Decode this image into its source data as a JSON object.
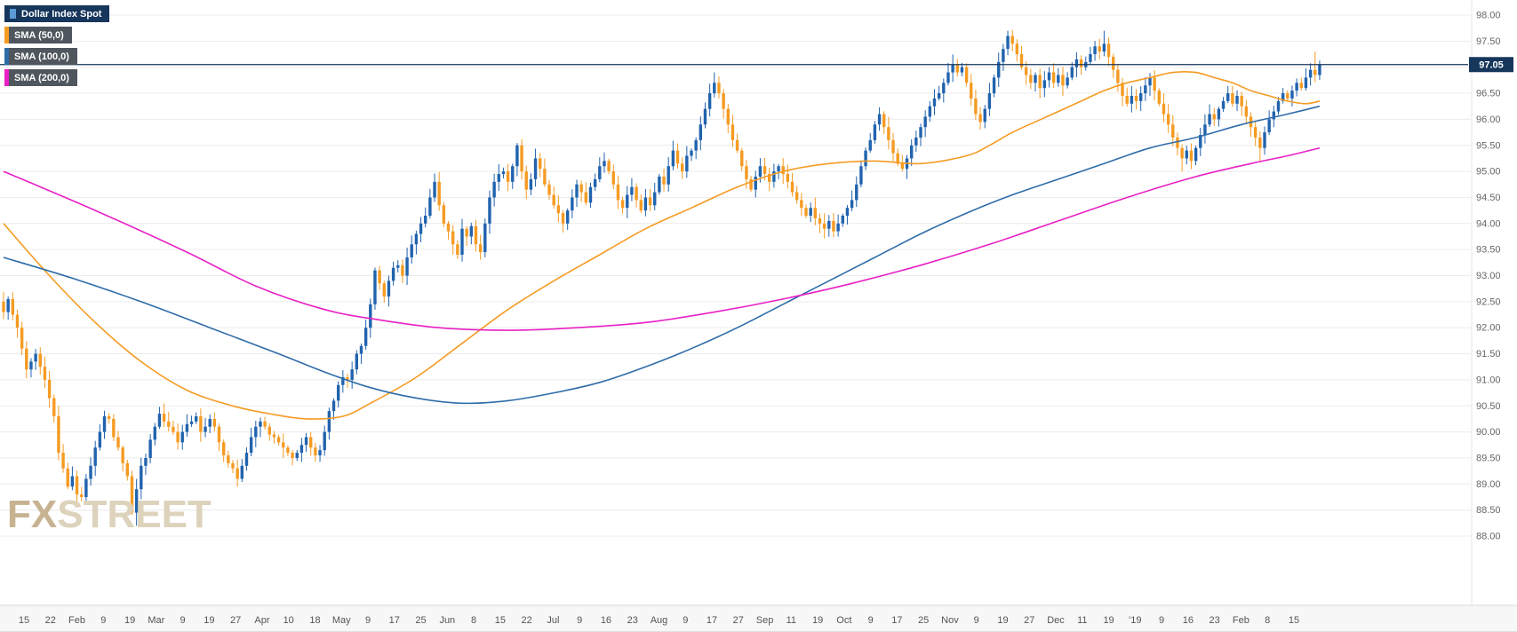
{
  "legend": {
    "series": {
      "label": "Dollar Index Spot"
    },
    "sma_items": [
      {
        "label": "SMA (50,0)",
        "color_key": "sma50"
      },
      {
        "label": "SMA (100,0)",
        "color_key": "sma100"
      },
      {
        "label": "SMA (200,0)",
        "color_key": "sma200"
      }
    ]
  },
  "watermark": {
    "fx": "FX",
    "street": "STREET"
  },
  "chart_data": {
    "type": "candlestick",
    "title": "Dollar Index Spot",
    "timeframe": "daily",
    "last_price": 97.05,
    "price_line": {
      "value": 97.05,
      "label": "97.05"
    },
    "colors": {
      "up": "#2163AE",
      "down": "#F59B22",
      "sma50": "#F59B22",
      "sma100": "#2E6CA8",
      "sma200": "#E820C5",
      "grid": "#ECECEC",
      "axis_text": "#666666",
      "navy": "#16365C",
      "legend_bg": "#4F565E",
      "marker": "#5B9BD5"
    },
    "y_axis": {
      "min": 88.0,
      "max": 98.0,
      "step": 0.5,
      "labels": [
        "98.00",
        "97.50",
        "97.00",
        "96.50",
        "96.00",
        "95.50",
        "95.00",
        "94.50",
        "94.00",
        "93.50",
        "93.00",
        "92.50",
        "92.00",
        "91.50",
        "91.00",
        "90.50",
        "90.00",
        "89.50",
        "89.00",
        "88.50",
        "88.00"
      ]
    },
    "x_axis": {
      "labels": [
        "15",
        "22",
        "Feb",
        "9",
        "19",
        "Mar",
        "9",
        "19",
        "27",
        "Apr",
        "10",
        "18",
        "May",
        "9",
        "17",
        "25",
        "Jun",
        "8",
        "15",
        "22",
        "Jul",
        "9",
        "16",
        "23",
        "Aug",
        "9",
        "17",
        "27",
        "Sep",
        "11",
        "19",
        "Oct",
        "9",
        "17",
        "25",
        "Nov",
        "9",
        "19",
        "27",
        "Dec",
        "11",
        "19",
        "'19",
        "9",
        "16",
        "23",
        "Feb",
        "8",
        "15"
      ]
    },
    "candles": {
      "first_open": 92.5,
      "closes": [
        92.3,
        92.55,
        92.25,
        92.0,
        91.6,
        91.2,
        91.35,
        91.5,
        91.25,
        91.0,
        90.65,
        90.3,
        89.6,
        89.3,
        88.95,
        89.15,
        88.8,
        88.75,
        89.1,
        89.35,
        89.7,
        90.0,
        90.3,
        90.25,
        89.9,
        89.7,
        89.4,
        89.15,
        88.45,
        88.9,
        89.35,
        89.5,
        89.85,
        90.1,
        90.35,
        90.2,
        90.1,
        90.0,
        89.8,
        90.0,
        90.15,
        90.2,
        90.3,
        90.0,
        90.1,
        90.25,
        90.1,
        89.8,
        89.55,
        89.4,
        89.3,
        89.1,
        89.35,
        89.6,
        89.9,
        90.1,
        90.2,
        90.1,
        89.95,
        89.9,
        89.8,
        89.7,
        89.6,
        89.5,
        89.6,
        89.75,
        89.9,
        89.7,
        89.55,
        89.65,
        90.0,
        90.4,
        90.6,
        90.9,
        91.05,
        91.0,
        91.2,
        91.5,
        91.65,
        92.0,
        92.45,
        93.1,
        92.85,
        92.6,
        92.9,
        93.15,
        93.2,
        93.0,
        93.35,
        93.6,
        93.8,
        94.0,
        94.15,
        94.5,
        94.8,
        94.35,
        94.0,
        93.85,
        93.6,
        93.4,
        93.9,
        93.75,
        93.95,
        93.6,
        93.45,
        94.0,
        94.5,
        94.8,
        94.95,
        95.0,
        94.8,
        95.1,
        95.5,
        95.0,
        94.65,
        94.85,
        95.25,
        95.05,
        94.75,
        94.55,
        94.35,
        94.2,
        94.0,
        94.25,
        94.5,
        94.75,
        94.6,
        94.4,
        94.7,
        94.85,
        95.1,
        95.2,
        95.0,
        94.75,
        94.45,
        94.3,
        94.55,
        94.7,
        94.45,
        94.25,
        94.5,
        94.35,
        94.6,
        94.9,
        94.75,
        95.1,
        95.4,
        95.15,
        95.0,
        95.3,
        95.4,
        95.6,
        95.9,
        96.2,
        96.5,
        96.7,
        96.5,
        96.2,
        95.9,
        95.6,
        95.4,
        95.1,
        94.85,
        94.65,
        94.9,
        95.1,
        94.95,
        94.8,
        95.0,
        95.1,
        94.95,
        94.8,
        94.6,
        94.45,
        94.3,
        94.15,
        94.3,
        94.1,
        94.0,
        93.9,
        94.05,
        93.85,
        94.0,
        94.15,
        94.3,
        94.45,
        94.75,
        95.1,
        95.4,
        95.6,
        95.9,
        96.1,
        95.85,
        95.6,
        95.35,
        95.15,
        95.05,
        95.25,
        95.5,
        95.65,
        95.85,
        96.05,
        96.25,
        96.4,
        96.5,
        96.7,
        96.9,
        97.05,
        96.9,
        97.0,
        96.7,
        96.4,
        96.1,
        95.95,
        96.2,
        96.5,
        96.8,
        97.1,
        97.35,
        97.6,
        97.45,
        97.25,
        97.0,
        96.85,
        96.7,
        96.85,
        96.6,
        96.75,
        96.9,
        96.7,
        96.85,
        96.65,
        96.8,
        97.0,
        97.15,
        97.0,
        97.1,
        97.25,
        97.4,
        97.3,
        97.45,
        97.2,
        96.95,
        96.7,
        96.45,
        96.3,
        96.45,
        96.35,
        96.5,
        96.65,
        96.8,
        96.55,
        96.3,
        96.1,
        95.9,
        95.65,
        95.45,
        95.25,
        95.4,
        95.2,
        95.45,
        95.7,
        95.9,
        96.1,
        96.0,
        96.2,
        96.35,
        96.5,
        96.3,
        96.45,
        96.25,
        96.05,
        95.85,
        95.65,
        95.45,
        95.75,
        96.0,
        96.15,
        96.35,
        96.5,
        96.4,
        96.55,
        96.7,
        96.6,
        96.8,
        96.95,
        96.85,
        97.05
      ],
      "wick_overrides": {
        "29": {
          "low": 88.2
        },
        "155": {
          "high": 96.9
        },
        "219": {
          "high": 97.7
        },
        "240": {
          "high": 97.7
        },
        "257": {
          "low": 95.0
        },
        "274": {
          "low": 95.2
        },
        "286": {
          "high": 97.3
        }
      }
    },
    "sma_series": [
      {
        "id": "sma-50-line",
        "name": "SMA (50,0)",
        "color_key": "sma50",
        "anchors": [
          [
            0,
            94.0
          ],
          [
            10,
            93.0
          ],
          [
            20,
            92.1
          ],
          [
            30,
            91.35
          ],
          [
            40,
            90.8
          ],
          [
            50,
            90.5
          ],
          [
            58,
            90.35
          ],
          [
            66,
            90.25
          ],
          [
            74,
            90.3
          ],
          [
            80,
            90.55
          ],
          [
            90,
            91.05
          ],
          [
            100,
            91.7
          ],
          [
            110,
            92.35
          ],
          [
            120,
            92.9
          ],
          [
            130,
            93.4
          ],
          [
            140,
            93.9
          ],
          [
            150,
            94.3
          ],
          [
            160,
            94.7
          ],
          [
            170,
            95.0
          ],
          [
            180,
            95.15
          ],
          [
            190,
            95.2
          ],
          [
            200,
            95.15
          ],
          [
            210,
            95.3
          ],
          [
            215,
            95.5
          ],
          [
            220,
            95.75
          ],
          [
            225,
            95.95
          ],
          [
            230,
            96.15
          ],
          [
            235,
            96.35
          ],
          [
            240,
            96.55
          ],
          [
            245,
            96.7
          ],
          [
            250,
            96.8
          ],
          [
            255,
            96.9
          ],
          [
            260,
            96.9
          ],
          [
            264,
            96.8
          ],
          [
            268,
            96.7
          ],
          [
            272,
            96.55
          ],
          [
            276,
            96.45
          ],
          [
            280,
            96.35
          ],
          [
            284,
            96.3
          ],
          [
            287,
            96.35
          ]
        ]
      },
      {
        "id": "sma-100-line",
        "name": "SMA (100,0)",
        "color_key": "sma100",
        "anchors": [
          [
            0,
            93.35
          ],
          [
            15,
            92.95
          ],
          [
            30,
            92.5
          ],
          [
            45,
            92.0
          ],
          [
            60,
            91.5
          ],
          [
            70,
            91.15
          ],
          [
            80,
            90.85
          ],
          [
            90,
            90.65
          ],
          [
            100,
            90.55
          ],
          [
            110,
            90.6
          ],
          [
            120,
            90.75
          ],
          [
            130,
            90.95
          ],
          [
            140,
            91.25
          ],
          [
            150,
            91.6
          ],
          [
            160,
            92.0
          ],
          [
            170,
            92.45
          ],
          [
            180,
            92.9
          ],
          [
            190,
            93.35
          ],
          [
            200,
            93.8
          ],
          [
            210,
            94.2
          ],
          [
            220,
            94.55
          ],
          [
            230,
            94.85
          ],
          [
            240,
            95.15
          ],
          [
            250,
            95.45
          ],
          [
            260,
            95.65
          ],
          [
            270,
            95.9
          ],
          [
            280,
            96.1
          ],
          [
            287,
            96.25
          ]
        ]
      },
      {
        "id": "sma-200-line",
        "name": "SMA (200,0)",
        "color_key": "sma200",
        "anchors": [
          [
            0,
            95.0
          ],
          [
            20,
            94.25
          ],
          [
            40,
            93.45
          ],
          [
            55,
            92.8
          ],
          [
            70,
            92.35
          ],
          [
            82,
            92.15
          ],
          [
            95,
            92.0
          ],
          [
            110,
            91.95
          ],
          [
            125,
            92.0
          ],
          [
            140,
            92.1
          ],
          [
            155,
            92.3
          ],
          [
            170,
            92.55
          ],
          [
            185,
            92.85
          ],
          [
            200,
            93.2
          ],
          [
            215,
            93.6
          ],
          [
            230,
            94.05
          ],
          [
            245,
            94.5
          ],
          [
            260,
            94.9
          ],
          [
            272,
            95.15
          ],
          [
            280,
            95.3
          ],
          [
            287,
            95.45
          ]
        ]
      }
    ]
  }
}
